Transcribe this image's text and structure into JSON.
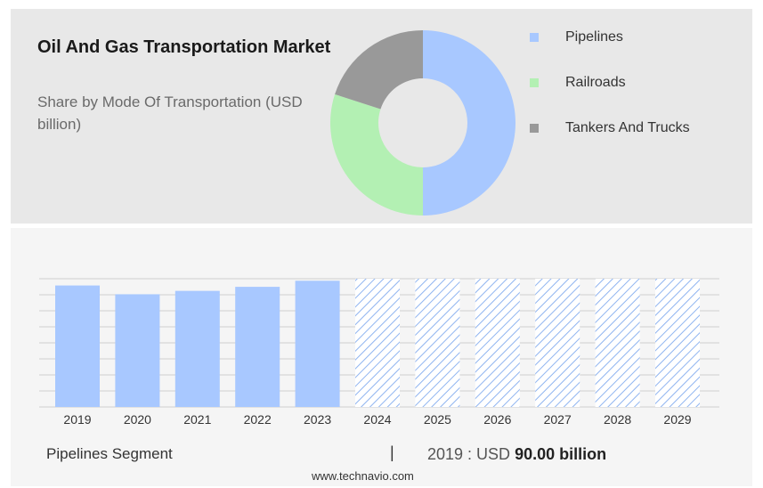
{
  "title": "Oil And Gas Transportation Market",
  "subtitle": "Share by Mode Of Transportation (USD billion)",
  "colors": {
    "pipelines": "#a8c8ff",
    "railroads": "#b3f0b3",
    "tankers": "#999999",
    "forecast_hatch": "#8fb4f0"
  },
  "footer": {
    "segment_label": "Pipelines Segment",
    "divider": "|",
    "year_text": "2019 : USD",
    "value_text": "90.00 billion"
  },
  "source": "www.technavio.com",
  "chart_data": [
    {
      "type": "pie",
      "style": "donut",
      "legend_position": "right",
      "labels": [
        "Pipelines",
        "Railroads",
        "Tankers And Trucks"
      ],
      "values": [
        50,
        30,
        20
      ],
      "colors": [
        "#a8c8ff",
        "#b3f0b3",
        "#999999"
      ]
    },
    {
      "type": "bar",
      "categories": [
        "2019",
        "2020",
        "2021",
        "2022",
        "2023",
        "2024",
        "2025",
        "2026",
        "2027",
        "2028",
        "2029"
      ],
      "values": [
        90.0,
        83.5,
        86.0,
        89.0,
        93.5,
        null,
        null,
        null,
        null,
        null,
        null
      ],
      "forecast_categories": [
        "2024",
        "2025",
        "2026",
        "2027",
        "2028",
        "2029"
      ],
      "ylim": [
        0,
        95
      ],
      "grid": true,
      "title": "",
      "xlabel": "",
      "ylabel": ""
    }
  ]
}
